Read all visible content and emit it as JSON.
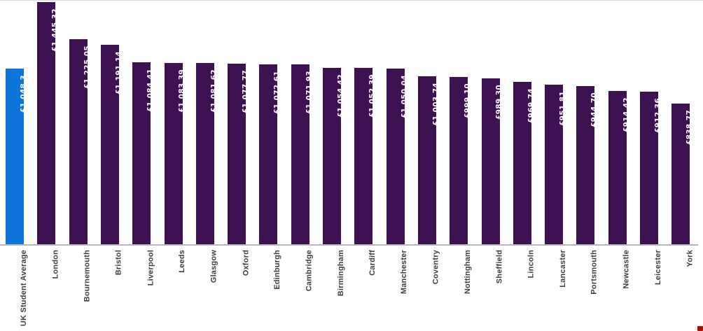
{
  "chart_data": {
    "type": "bar",
    "title": "",
    "xlabel": "",
    "ylabel": "",
    "ylim": [
      0,
      1460
    ],
    "grid": false,
    "legend": false,
    "orientation": "vertical",
    "value_labels_rotated": true,
    "category_labels_rotated": true,
    "categories": [
      "UK Student Average",
      "London",
      "Bournemouth",
      "Bristol",
      "Liverpool",
      "Leeds",
      "Glasgow",
      "Oxford",
      "Edinburgh",
      "Cambridge",
      "Birmingham",
      "Cardiff",
      "Manchester",
      "Coventry",
      "Nottingham",
      "Sheffield",
      "Lincoln",
      "Lancaster",
      "Portsmouth",
      "Newcastle",
      "Leicester",
      "York"
    ],
    "values": [
      1048.3,
      1445.32,
      1225.05,
      1191.14,
      1084.41,
      1083.39,
      1081.62,
      1077.77,
      1072.61,
      1071.93,
      1054.42,
      1052.39,
      1050.04,
      1003.74,
      999.1,
      989.3,
      969.74,
      951.81,
      944.7,
      914.42,
      912.36,
      838.77
    ],
    "value_labels": [
      "£1,048.3",
      "£1,445.32",
      "£1,225.05",
      "£1,191.14",
      "£1,084.41",
      "£1,083.39",
      "£1,081.62",
      "£1,077.77",
      "£1,072.61",
      "£1,071.93",
      "£1,054.42",
      "£1,052.39",
      "£1,050.04",
      "£1,003.74",
      "£999.10",
      "£989.30",
      "£969.74",
      "£951.81",
      "£944.70",
      "£914.42",
      "£912.36",
      "£838.77"
    ],
    "highlight_index": 0,
    "colors": {
      "bar_default": "#3d1152",
      "bar_highlight": "#0d74da",
      "value_label": "#ffffff",
      "category_label": "#3f3f3f",
      "axis_line": "#b7b7b7",
      "top_border": "#d9d9d9",
      "corner_mark": "#b00a0a"
    }
  }
}
